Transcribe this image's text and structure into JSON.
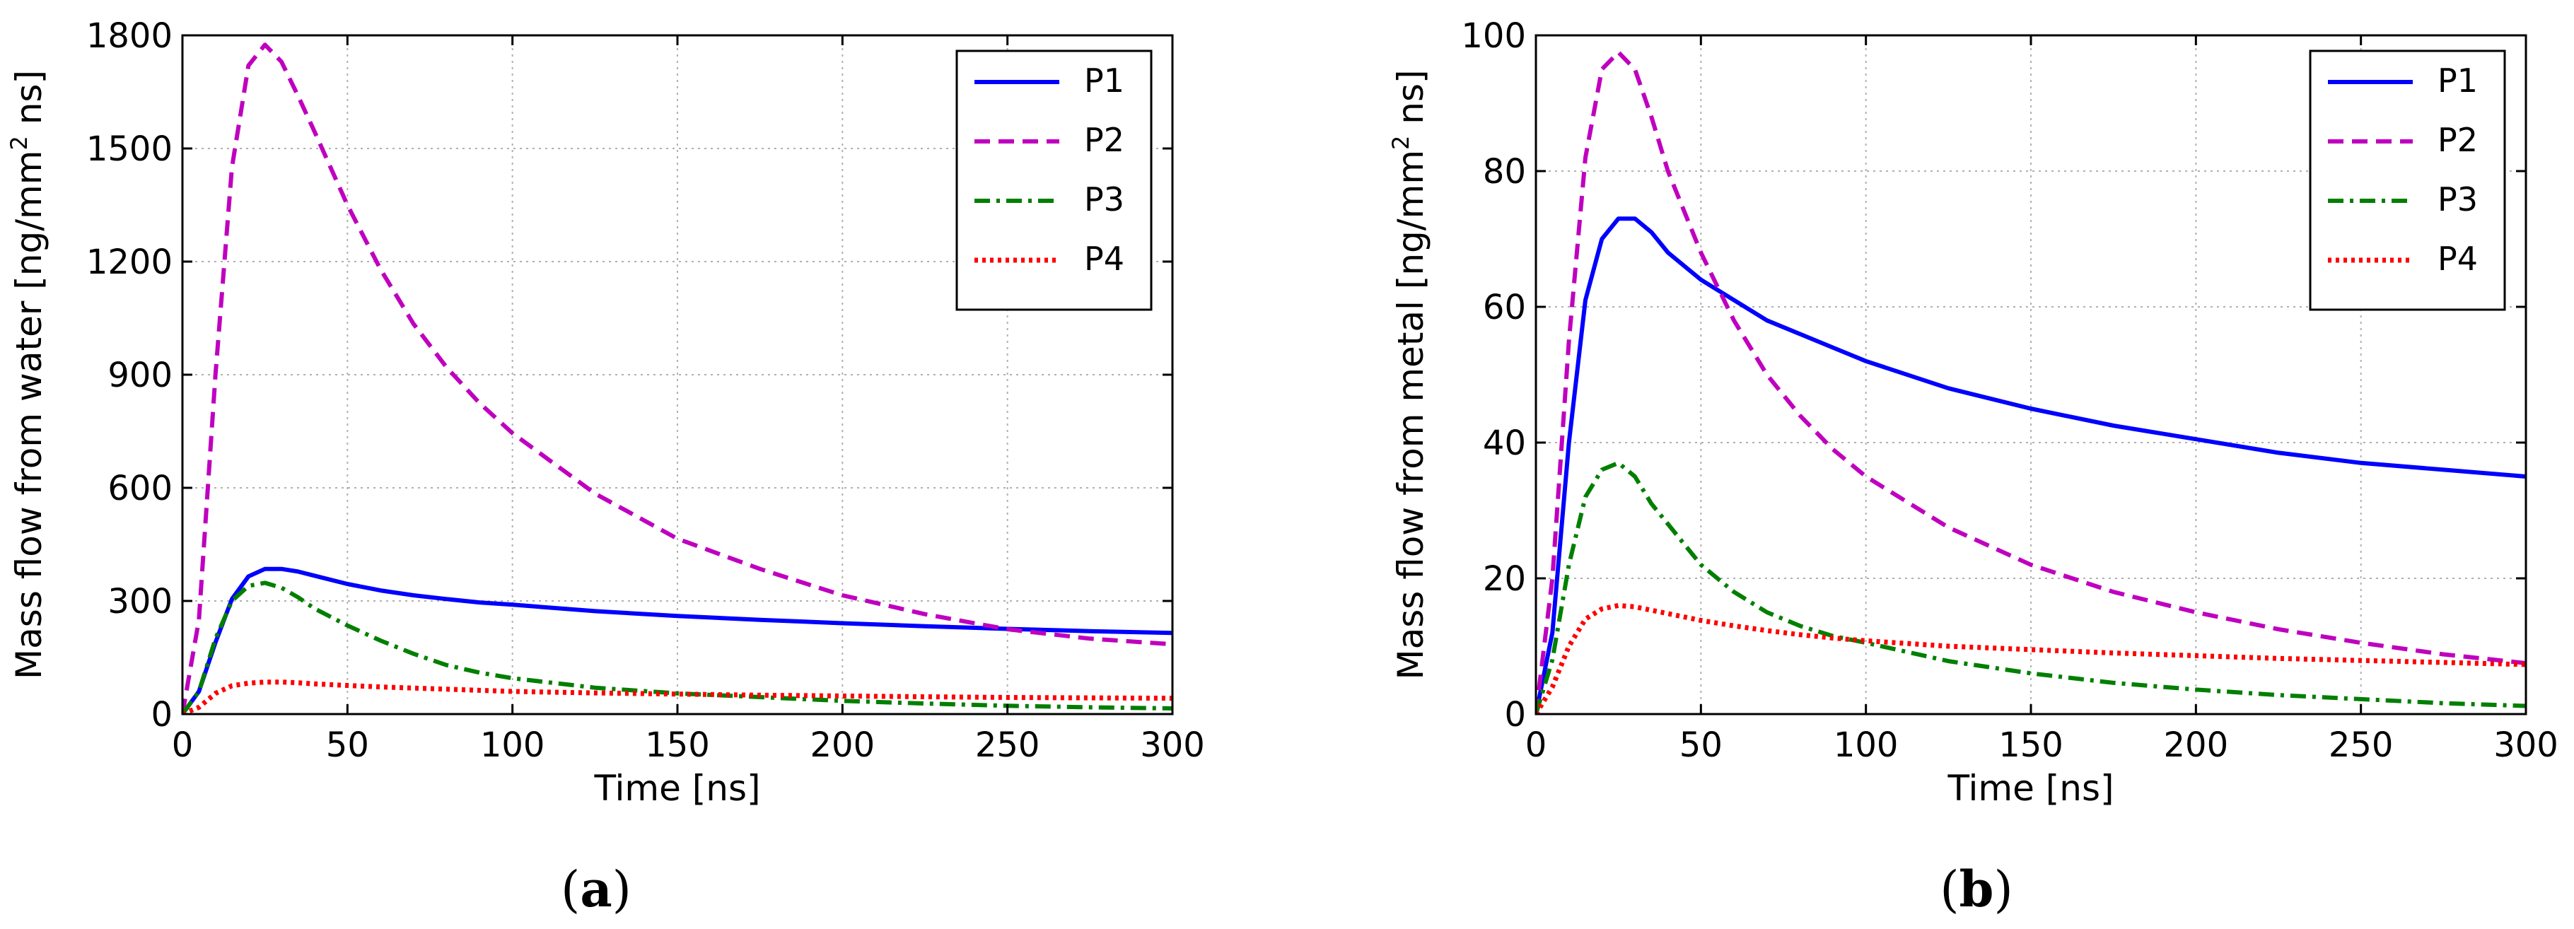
{
  "figure": {
    "captions": [
      {
        "open": "(",
        "letter": "a",
        "close": ")"
      },
      {
        "open": "(",
        "letter": "b",
        "close": ")"
      }
    ]
  },
  "styles": {
    "P1": {
      "color": "#0000ff",
      "dash": "solid"
    },
    "P2": {
      "color": "#bf00bf",
      "dash": "dashed"
    },
    "P3": {
      "color": "#007f00",
      "dash": "dashdot"
    },
    "P4": {
      "color": "#ff0000",
      "dash": "dotted"
    }
  },
  "chart_data": [
    {
      "id": "a",
      "type": "line",
      "title": "",
      "xlabel": "Time [ns]",
      "ylabel_prefix": "Mass flow from water [ng/mm",
      "ylabel_sup": "2",
      "ylabel_suffix": " ns]",
      "xlim": [
        0,
        300
      ],
      "ylim": [
        0,
        1800
      ],
      "xticks": [
        0,
        50,
        100,
        150,
        200,
        250,
        300
      ],
      "yticks": [
        0,
        300,
        600,
        900,
        1200,
        1500,
        1800
      ],
      "grid": true,
      "legend_position": "top-right",
      "series": [
        {
          "name": "P1",
          "x": [
            0,
            5,
            10,
            15,
            20,
            25,
            30,
            35,
            40,
            50,
            60,
            70,
            80,
            90,
            100,
            125,
            150,
            175,
            200,
            225,
            250,
            275,
            300
          ],
          "y": [
            0,
            60,
            190,
            305,
            365,
            385,
            385,
            378,
            367,
            345,
            328,
            315,
            305,
            296,
            290,
            273,
            260,
            250,
            241,
            233,
            226,
            220,
            215
          ]
        },
        {
          "name": "P2",
          "x": [
            0,
            5,
            10,
            15,
            20,
            25,
            30,
            35,
            40,
            50,
            60,
            70,
            80,
            90,
            100,
            125,
            150,
            175,
            200,
            225,
            250,
            275,
            300
          ],
          "y": [
            0,
            250,
            900,
            1450,
            1720,
            1775,
            1730,
            1640,
            1545,
            1350,
            1180,
            1035,
            920,
            825,
            745,
            585,
            465,
            385,
            315,
            265,
            225,
            200,
            185
          ]
        },
        {
          "name": "P3",
          "x": [
            0,
            5,
            10,
            15,
            20,
            25,
            30,
            35,
            40,
            50,
            60,
            70,
            80,
            90,
            100,
            125,
            150,
            175,
            200,
            225,
            250,
            275,
            300
          ],
          "y": [
            0,
            60,
            200,
            300,
            340,
            348,
            335,
            310,
            280,
            235,
            195,
            160,
            130,
            110,
            95,
            70,
            55,
            45,
            35,
            28,
            22,
            18,
            15
          ]
        },
        {
          "name": "P4",
          "x": [
            0,
            5,
            10,
            15,
            20,
            25,
            30,
            35,
            40,
            50,
            60,
            70,
            80,
            90,
            100,
            125,
            150,
            175,
            200,
            225,
            250,
            275,
            300
          ],
          "y": [
            0,
            18,
            55,
            75,
            82,
            85,
            85,
            83,
            80,
            76,
            72,
            69,
            66,
            63,
            60,
            56,
            53,
            50,
            48,
            46,
            44,
            43,
            42
          ]
        }
      ]
    },
    {
      "id": "b",
      "type": "line",
      "title": "",
      "xlabel": "Time [ns]",
      "ylabel_prefix": "Mass flow from metal [ng/mm",
      "ylabel_sup": "2",
      "ylabel_suffix": " ns]",
      "xlim": [
        0,
        300
      ],
      "ylim": [
        0,
        100
      ],
      "xticks": [
        0,
        50,
        100,
        150,
        200,
        250,
        300
      ],
      "yticks": [
        0,
        20,
        40,
        60,
        80,
        100
      ],
      "grid": true,
      "legend_position": "top-right",
      "series": [
        {
          "name": "P1",
          "x": [
            0,
            5,
            10,
            15,
            20,
            25,
            30,
            35,
            40,
            50,
            60,
            70,
            80,
            90,
            100,
            125,
            150,
            175,
            200,
            225,
            250,
            275,
            300
          ],
          "y": [
            0,
            12,
            40,
            61,
            70,
            73,
            73,
            71,
            68,
            64,
            61,
            58,
            56,
            54,
            52,
            48,
            45,
            42.5,
            40.5,
            38.5,
            37,
            36,
            35
          ]
        },
        {
          "name": "P2",
          "x": [
            0,
            5,
            10,
            15,
            20,
            25,
            30,
            35,
            40,
            50,
            60,
            70,
            80,
            90,
            100,
            125,
            150,
            175,
            200,
            225,
            250,
            275,
            300
          ],
          "y": [
            0,
            20,
            55,
            82,
            95,
            97.5,
            95,
            88,
            80,
            68,
            58,
            50,
            44,
            39,
            35,
            27.5,
            22,
            18,
            15,
            12.5,
            10.5,
            8.8,
            7.5
          ]
        },
        {
          "name": "P3",
          "x": [
            0,
            5,
            10,
            15,
            20,
            25,
            30,
            35,
            40,
            50,
            60,
            70,
            80,
            90,
            100,
            125,
            150,
            175,
            200,
            225,
            250,
            275,
            300
          ],
          "y": [
            0,
            8,
            22,
            32,
            36,
            37,
            35,
            31,
            28,
            22,
            18,
            15,
            13,
            11.5,
            10.5,
            7.8,
            6,
            4.6,
            3.6,
            2.8,
            2.2,
            1.6,
            1.2
          ]
        },
        {
          "name": "P4",
          "x": [
            0,
            5,
            10,
            15,
            20,
            25,
            30,
            35,
            40,
            50,
            60,
            70,
            80,
            90,
            100,
            125,
            150,
            175,
            200,
            225,
            250,
            275,
            300
          ],
          "y": [
            0,
            4,
            10,
            14,
            15.5,
            16,
            15.8,
            15.3,
            14.8,
            13.8,
            13,
            12.3,
            11.7,
            11.2,
            10.8,
            10,
            9.5,
            9,
            8.6,
            8.2,
            7.9,
            7.6,
            7.3
          ]
        }
      ]
    }
  ]
}
